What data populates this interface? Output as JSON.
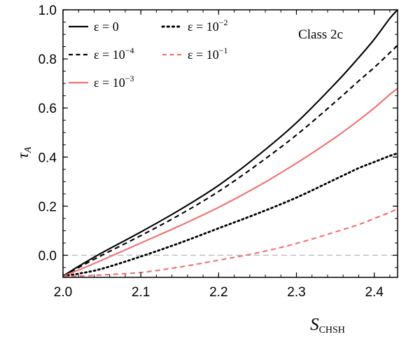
{
  "chart_data": {
    "type": "line",
    "annotation": "Class 2c",
    "xlabel": {
      "main": "S",
      "sub": "CHSH"
    },
    "ylabel": {
      "main": "τ",
      "sub": "A"
    },
    "xlim": [
      2.0,
      2.43
    ],
    "ylim": [
      -0.09,
      1.0
    ],
    "xticks": [
      {
        "value": 2.0,
        "label": "2.0"
      },
      {
        "value": 2.1,
        "label": "2.1"
      },
      {
        "value": 2.2,
        "label": "2.2"
      },
      {
        "value": 2.3,
        "label": "2.3"
      },
      {
        "value": 2.4,
        "label": "2.4"
      }
    ],
    "yticks": [
      {
        "value": 0.0,
        "label": "0.0"
      },
      {
        "value": 0.2,
        "label": "0.2"
      },
      {
        "value": 0.4,
        "label": "0.4"
      },
      {
        "value": 0.6,
        "label": "0.6"
      },
      {
        "value": 0.8,
        "label": "0.8"
      },
      {
        "value": 1.0,
        "label": "1.0"
      }
    ],
    "reference_line": {
      "y": 0.0,
      "color": "#bbbbbb",
      "style": "dashed"
    },
    "legend_placement": "top-left",
    "series": [
      {
        "name": "ε = 0",
        "name_parts": {
          "pre": "ε = 0",
          "sup": ""
        },
        "color": "#000000",
        "style": "solid",
        "x": [
          2.0,
          2.02,
          2.05,
          2.1,
          2.15,
          2.2,
          2.25,
          2.3,
          2.35,
          2.38,
          2.4,
          2.42,
          2.43
        ],
        "y": [
          -0.085,
          -0.045,
          0.01,
          0.095,
          0.185,
          0.285,
          0.405,
          0.54,
          0.7,
          0.805,
          0.88,
          0.965,
          1.0
        ]
      },
      {
        "name": "ε = 10^-4",
        "name_parts": {
          "pre": "ε = 10",
          "sup": "−4"
        },
        "color": "#000000",
        "style": "dashed",
        "x": [
          2.0,
          2.02,
          2.05,
          2.1,
          2.15,
          2.2,
          2.25,
          2.3,
          2.35,
          2.38,
          2.4,
          2.42,
          2.43
        ],
        "y": [
          -0.085,
          -0.05,
          0.0,
          0.08,
          0.165,
          0.26,
          0.37,
          0.49,
          0.625,
          0.71,
          0.765,
          0.825,
          0.855
        ]
      },
      {
        "name": "ε = 10^-3",
        "name_parts": {
          "pre": "ε = 10",
          "sup": "−3"
        },
        "color": "#f07070",
        "style": "solid",
        "x": [
          2.0,
          2.02,
          2.05,
          2.1,
          2.15,
          2.2,
          2.25,
          2.3,
          2.35,
          2.38,
          2.4,
          2.42,
          2.43
        ],
        "y": [
          -0.085,
          -0.06,
          -0.02,
          0.05,
          0.12,
          0.195,
          0.28,
          0.375,
          0.48,
          0.55,
          0.6,
          0.655,
          0.68
        ]
      },
      {
        "name": "ε = 10^-2",
        "name_parts": {
          "pre": "ε = 10",
          "sup": "−2"
        },
        "color": "#000000",
        "style": "dotted",
        "x": [
          2.0,
          2.02,
          2.05,
          2.1,
          2.15,
          2.2,
          2.25,
          2.3,
          2.35,
          2.38,
          2.4,
          2.42,
          2.43
        ],
        "y": [
          -0.085,
          -0.075,
          -0.055,
          -0.005,
          0.05,
          0.11,
          0.17,
          0.235,
          0.31,
          0.355,
          0.38,
          0.405,
          0.415
        ]
      },
      {
        "name": "ε = 10^-1",
        "name_parts": {
          "pre": "ε = 10",
          "sup": "−1"
        },
        "color": "#f07070",
        "style": "dashed",
        "x": [
          2.0,
          2.02,
          2.05,
          2.1,
          2.15,
          2.2,
          2.25,
          2.3,
          2.35,
          2.38,
          2.4,
          2.42,
          2.43
        ],
        "y": [
          -0.085,
          -0.085,
          -0.08,
          -0.07,
          -0.048,
          -0.02,
          0.01,
          0.048,
          0.095,
          0.125,
          0.15,
          0.175,
          0.19
        ]
      }
    ]
  }
}
